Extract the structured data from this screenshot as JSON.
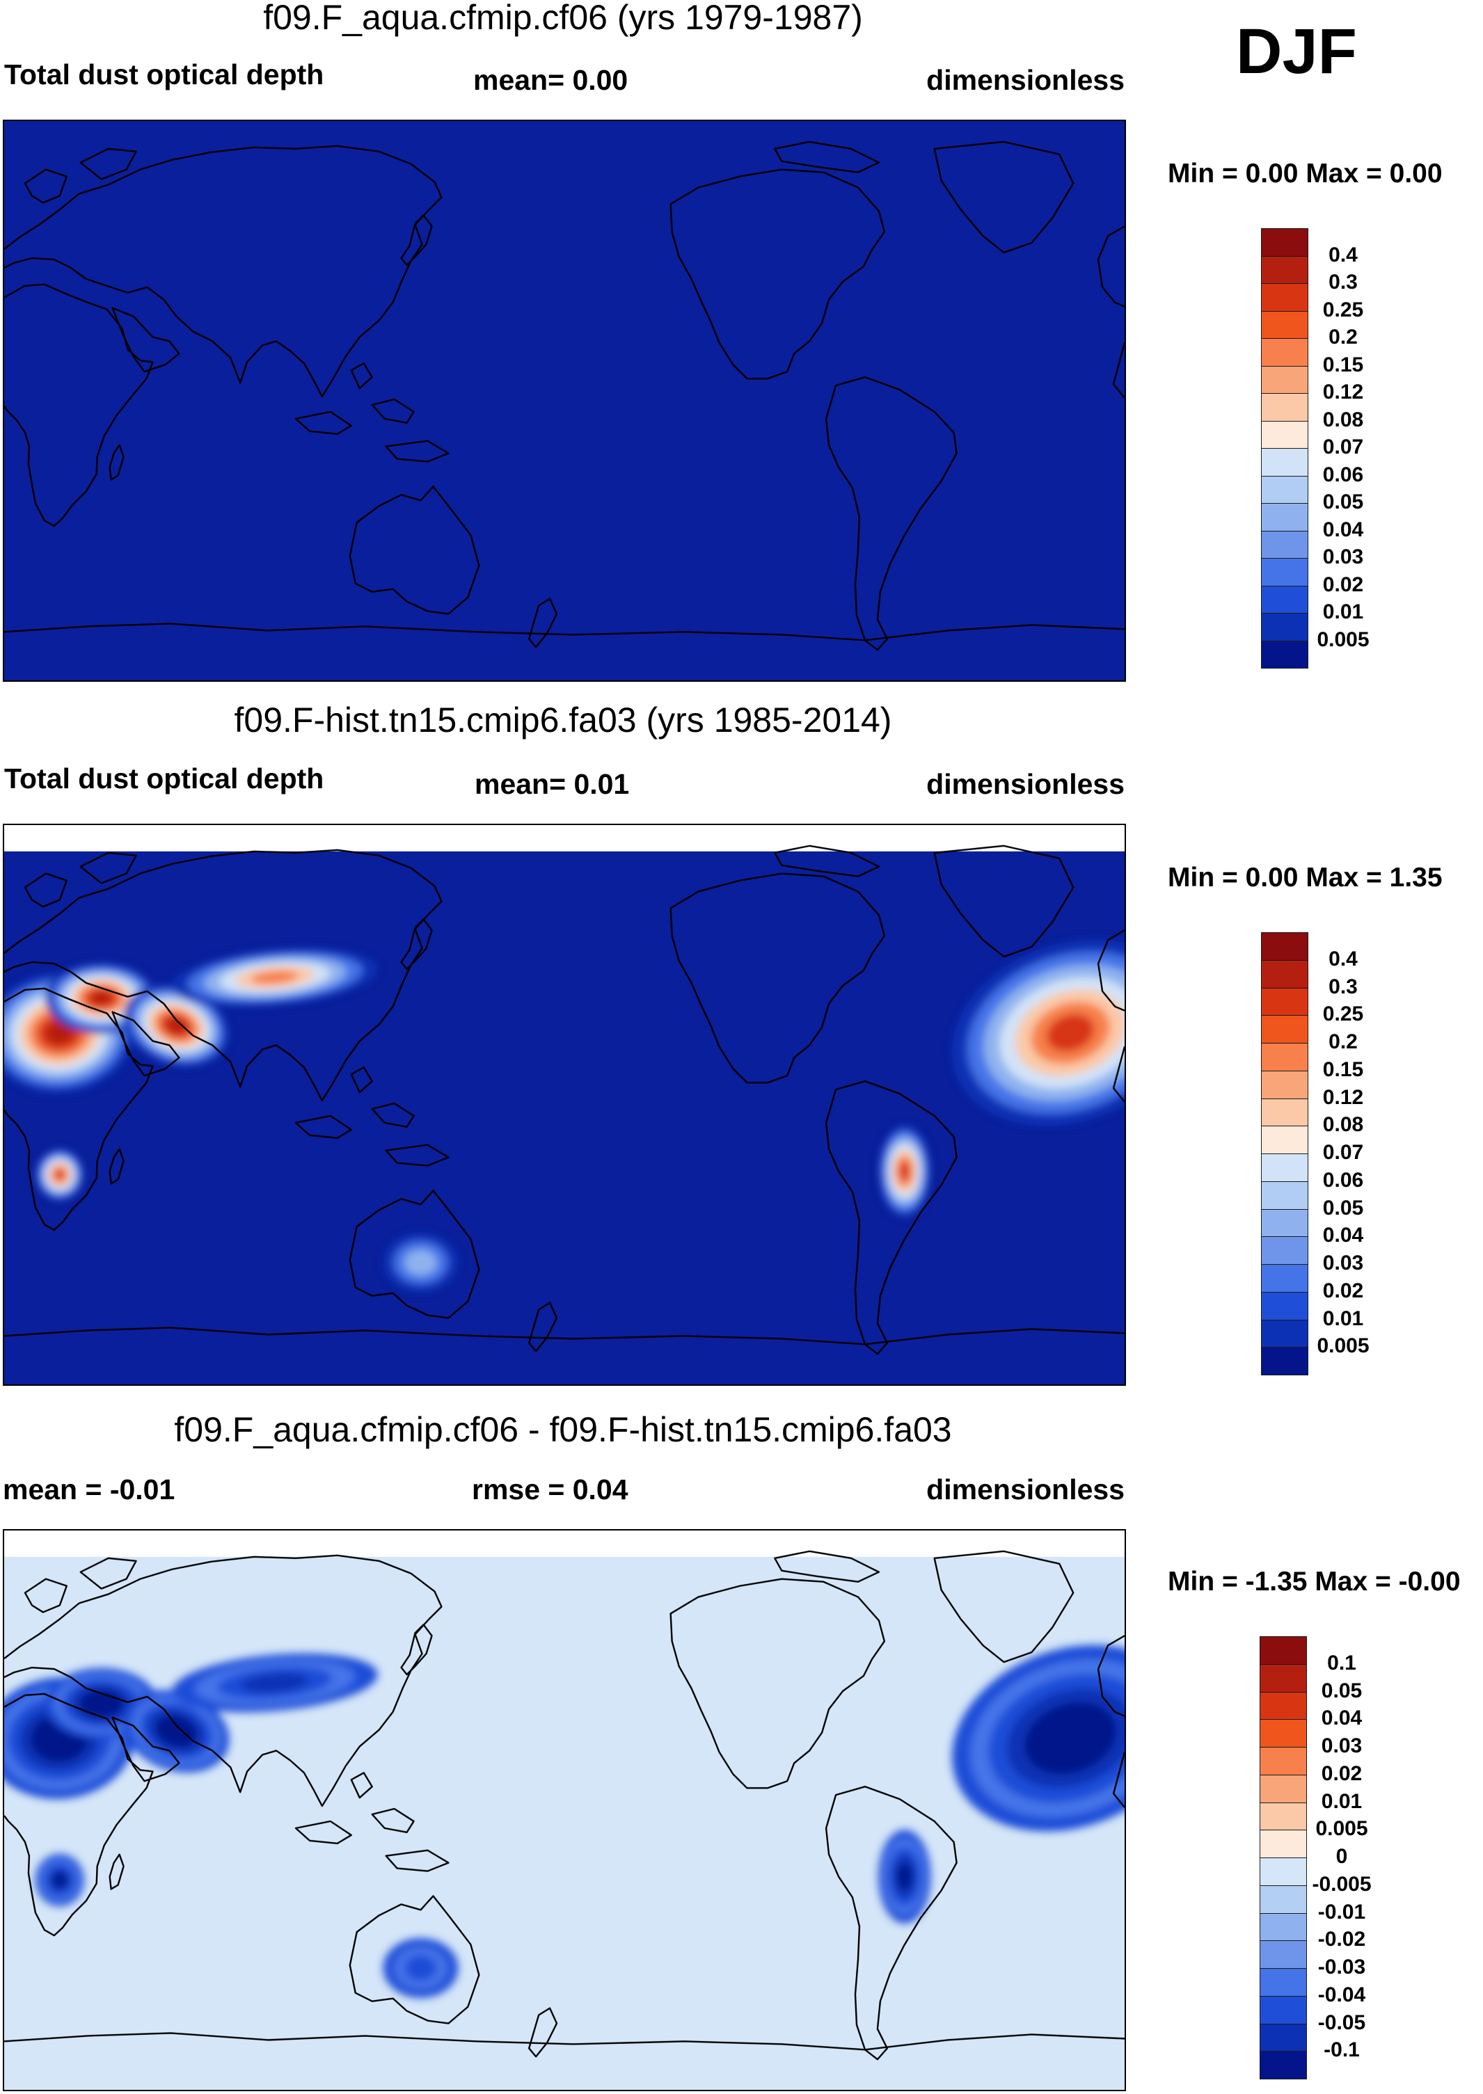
{
  "season": "DJF",
  "panels": [
    {
      "title": "f09.F_aqua.cfmip.cf06 (yrs 1979-1987)",
      "left_text": "Total dust optical depth",
      "center_text": "mean=   0.00",
      "right_text": "dimensionless",
      "minmax": "Min =    0.00 Max =    0.00",
      "levels": [
        "0.4",
        "0.3",
        "0.25",
        "0.2",
        "0.15",
        "0.12",
        "0.08",
        "0.07",
        "0.06",
        "0.05",
        "0.04",
        "0.03",
        "0.02",
        "0.01",
        "0.005"
      ],
      "colors": [
        "#8b0d0d",
        "#b51f10",
        "#d83612",
        "#f0551d",
        "#f7804c",
        "#f9a57a",
        "#fbc9a8",
        "#fdeadb",
        "#d2e3f7",
        "#b1cdf3",
        "#8fb2ef",
        "#6f95ea",
        "#4474e8",
        "#1f4ed8",
        "#0c31b5",
        "#04148a"
      ],
      "map_background": "#0a1f9b",
      "features": []
    },
    {
      "title": "f09.F-hist.tn15.cmip6.fa03 (yrs 1985-2014)",
      "left_text": "Total dust optical depth",
      "center_text": "mean=   0.01",
      "right_text": "dimensionless",
      "minmax": "Min =    0.00 Max =    1.35",
      "levels": [
        "0.4",
        "0.3",
        "0.25",
        "0.2",
        "0.15",
        "0.12",
        "0.08",
        "0.07",
        "0.06",
        "0.05",
        "0.04",
        "0.03",
        "0.02",
        "0.01",
        "0.005"
      ],
      "colors": [
        "#8b0d0d",
        "#b51f10",
        "#d83612",
        "#f0551d",
        "#f7804c",
        "#f9a57a",
        "#fbc9a8",
        "#fdeadb",
        "#d2e3f7",
        "#b1cdf3",
        "#8fb2ef",
        "#6f95ea",
        "#4474e8",
        "#1f4ed8",
        "#0c31b5",
        "#04148a"
      ],
      "map_background": "#0a1f9b",
      "features": [
        "sahara-west",
        "sahara-east",
        "arabia",
        "central-asia",
        "sw-africa",
        "australia",
        "andes",
        "atlantic-plume"
      ]
    },
    {
      "title": "f09.F_aqua.cfmip.cf06 - f09.F-hist.tn15.cmip6.fa03",
      "left_text": "mean =  -0.01",
      "center_text": "rmse =   0.04",
      "right_text": "dimensionless",
      "minmax": "Min =  -1.35 Max =  -0.00",
      "levels": [
        "0.1",
        "0.05",
        "0.04",
        "0.03",
        "0.02",
        "0.01",
        "0.005",
        "0",
        "-0.005",
        "-0.01",
        "-0.02",
        "-0.03",
        "-0.04",
        "-0.05",
        "-0.1"
      ],
      "colors": [
        "#8b0d0d",
        "#b51f10",
        "#d83612",
        "#f0551d",
        "#f7804c",
        "#f9a57a",
        "#fbc9a8",
        "#fdeadb",
        "#d5e6f8",
        "#b4cff4",
        "#8fb2ef",
        "#6f95ea",
        "#4474e8",
        "#1f4ed8",
        "#0c31b5",
        "#04148a"
      ],
      "map_background": "#d5e6f8",
      "features": [
        "sahara-west",
        "sahara-east",
        "arabia",
        "central-asia",
        "sw-africa",
        "australia",
        "andes",
        "atlantic-plume"
      ]
    }
  ]
}
